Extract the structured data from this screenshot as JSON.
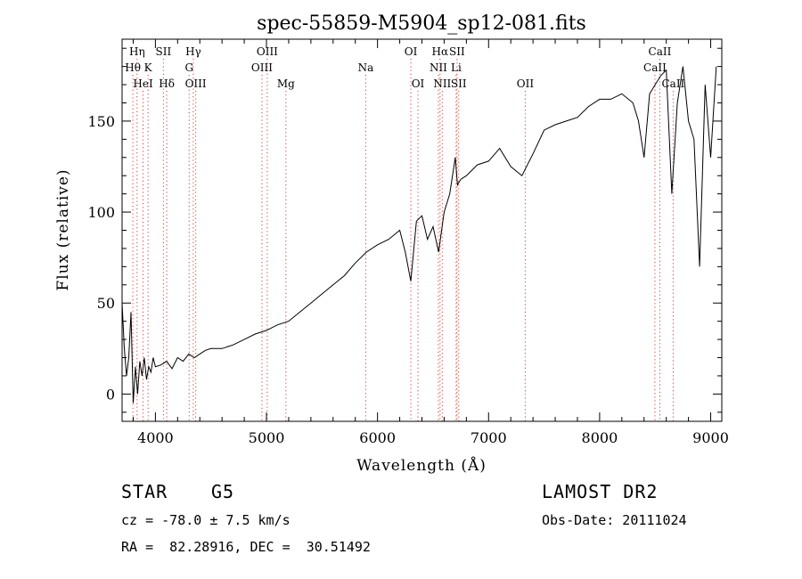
{
  "chart_data": {
    "type": "line",
    "title": "spec-55859-M5904_sp12-081.fits",
    "xlabel": "Wavelength (Å)",
    "ylabel": "Flux (relative)",
    "xlim": [
      3700,
      9100
    ],
    "ylim": [
      -15,
      195
    ],
    "x_ticks": [
      "4000",
      "5000",
      "6000",
      "7000",
      "8000",
      "9000"
    ],
    "y_ticks": [
      "0",
      "50",
      "100",
      "150"
    ],
    "grid": false,
    "series": [
      {
        "x": [
          3700,
          3720,
          3740,
          3760,
          3780,
          3800,
          3820,
          3840,
          3860,
          3880,
          3900,
          3920,
          3940,
          3960,
          3980,
          4000,
          4050,
          4100,
          4150,
          4200,
          4250,
          4300,
          4350,
          4400,
          4450,
          4500,
          4600,
          4700,
          4800,
          4900,
          5000,
          5100,
          5200,
          5300,
          5400,
          5500,
          5600,
          5700,
          5800,
          5900,
          6000,
          6100,
          6200,
          6250,
          6300,
          6350,
          6400,
          6450,
          6500,
          6550,
          6600,
          6650,
          6700,
          6720,
          6750,
          6800,
          6900,
          7000,
          7100,
          7200,
          7300,
          7400,
          7500,
          7600,
          7700,
          7800,
          7900,
          8000,
          8100,
          8200,
          8300,
          8350,
          8400,
          8450,
          8500,
          8550,
          8600,
          8650,
          8700,
          8750,
          8800,
          8850,
          8900,
          8950,
          9000,
          9050
        ],
        "y": [
          50,
          25,
          10,
          20,
          45,
          -5,
          15,
          0,
          18,
          10,
          20,
          8,
          15,
          12,
          20,
          15,
          16,
          18,
          14,
          20,
          18,
          22,
          20,
          22,
          24,
          25,
          25,
          27,
          30,
          33,
          35,
          38,
          40,
          45,
          50,
          55,
          60,
          65,
          72,
          78,
          82,
          85,
          90,
          78,
          62,
          95,
          98,
          85,
          92,
          78,
          100,
          110,
          130,
          115,
          118,
          120,
          126,
          128,
          135,
          125,
          120,
          132,
          145,
          148,
          150,
          152,
          158,
          162,
          162,
          165,
          160,
          150,
          130,
          165,
          170,
          175,
          178,
          110,
          160,
          180,
          150,
          140,
          70,
          170,
          130,
          180
        ]
      }
    ],
    "line_markers": [
      {
        "label": "Hη",
        "x": 3835,
        "row": 0
      },
      {
        "label": "Hθ",
        "x": 3797,
        "row": 1
      },
      {
        "label": "K",
        "x": 3934,
        "row": 1
      },
      {
        "label": "HeI",
        "x": 3889,
        "row": 2
      },
      {
        "label": "SII",
        "x": 4072,
        "row": 0
      },
      {
        "label": "Hδ",
        "x": 4102,
        "row": 2
      },
      {
        "label": "Hγ",
        "x": 4341,
        "row": 0
      },
      {
        "label": "G",
        "x": 4304,
        "row": 1
      },
      {
        "label": "OIII",
        "x": 4363,
        "row": 2
      },
      {
        "label": "OIII",
        "x": 5007,
        "row": 0
      },
      {
        "label": "OIII",
        "x": 4959,
        "row": 1
      },
      {
        "label": "Mg",
        "x": 5175,
        "row": 2
      },
      {
        "label": "Na",
        "x": 5894,
        "row": 1
      },
      {
        "label": "OI",
        "x": 6300,
        "row": 0
      },
      {
        "label": "OI",
        "x": 6364,
        "row": 2
      },
      {
        "label": "Hα",
        "x": 6563,
        "row": 0
      },
      {
        "label": "SII",
        "x": 6716,
        "row": 0
      },
      {
        "label": "NII",
        "x": 6548,
        "row": 1
      },
      {
        "label": "Li",
        "x": 6708,
        "row": 1
      },
      {
        "label": "NII",
        "x": 6583,
        "row": 2
      },
      {
        "label": "SII",
        "x": 6731,
        "row": 2
      },
      {
        "label": "OII",
        "x": 7330,
        "row": 2
      },
      {
        "label": "CaII",
        "x": 8542,
        "row": 0
      },
      {
        "label": "CaII",
        "x": 8498,
        "row": 1
      },
      {
        "label": "CaII",
        "x": 8662,
        "row": 2
      }
    ],
    "colors": {
      "spectrum": "#000000",
      "marker_lines": "#d04030"
    }
  },
  "info": {
    "object_class": "STAR",
    "subclass": "G5",
    "survey": "LAMOST DR2",
    "velocity": "cz = -78.0 ± 7.5 km/s",
    "obs_date": "Obs-Date: 20111024",
    "coords": "RA =  82.28916, DEC =  30.51492"
  }
}
